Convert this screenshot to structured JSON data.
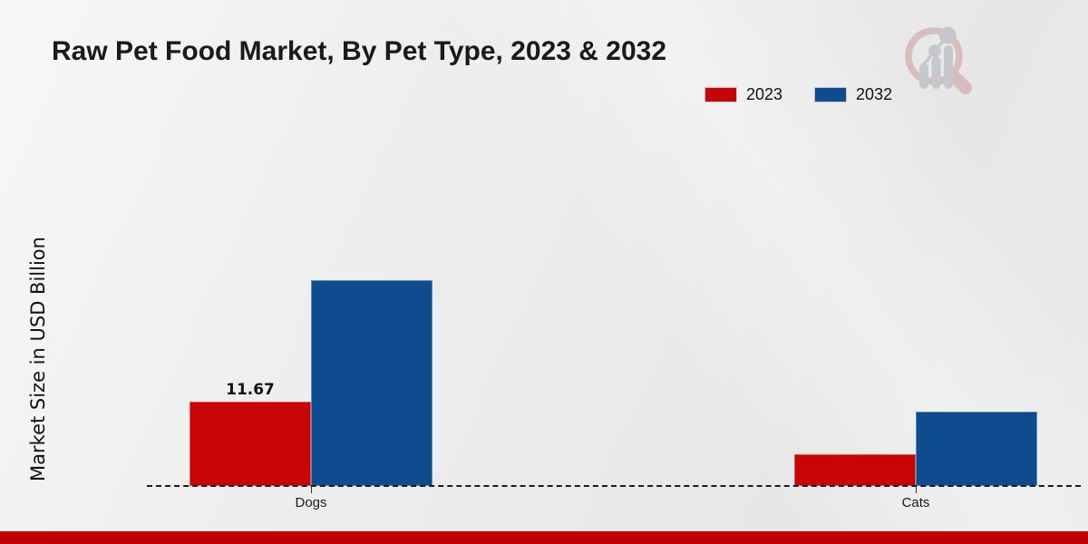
{
  "header": {
    "title": "Raw Pet Food Market, By Pet Type, 2023 & 2032"
  },
  "branding": {
    "logo_name": "market-research-future-logo-watermark",
    "footer_bar_color": "#c00000"
  },
  "chart_data": {
    "type": "bar",
    "title": "Raw Pet Food Market, By Pet Type, 2023 & 2032",
    "xlabel": "",
    "ylabel": "Market Size in USD Billion",
    "categories": [
      "Dogs",
      "Cats"
    ],
    "series": [
      {
        "name": "2023",
        "color": "#c80505",
        "values": [
          11.67,
          4.4
        ]
      },
      {
        "name": "2032",
        "color": "#0e4c8f",
        "values": [
          28.5,
          10.3
        ]
      }
    ],
    "bar_labels": [
      {
        "category": "Dogs",
        "series": "2023",
        "text": "11.67"
      }
    ],
    "ylim": [
      0,
      30
    ],
    "grid": false,
    "legend_position": "top-right",
    "baseline_style": "dashed",
    "axis_tick_labels_x": [
      "Dogs",
      "Cats"
    ]
  }
}
